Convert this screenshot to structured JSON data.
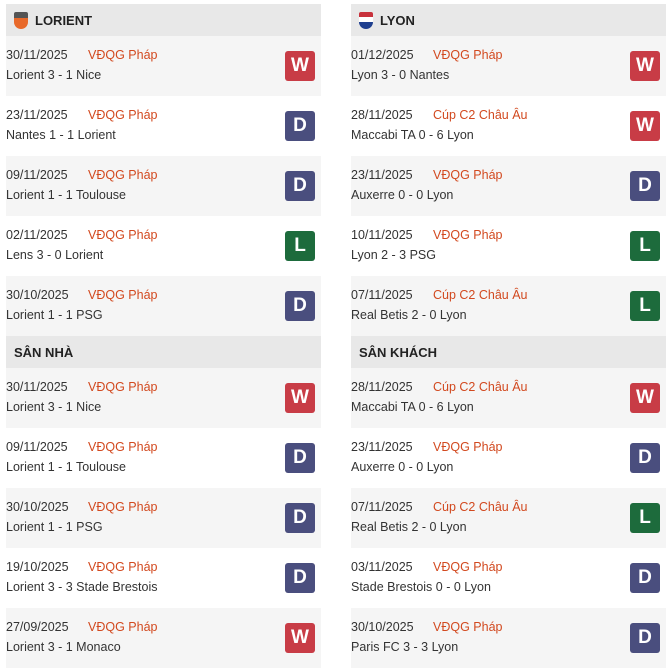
{
  "colors": {
    "W": "#c83c46",
    "D": "#4a4e7e",
    "L": "#1d6b3c",
    "competition": "#d2491f"
  },
  "sections": [
    {
      "title": "LORIENT",
      "icon": "lorient-crest-icon",
      "rows": [
        {
          "date": "30/11/2025",
          "comp": "VĐQG Pháp",
          "match": "Lorient 3 - 1 Nice",
          "result": "W"
        },
        {
          "date": "23/11/2025",
          "comp": "VĐQG Pháp",
          "match": "Nantes 1 - 1 Lorient",
          "result": "D"
        },
        {
          "date": "09/11/2025",
          "comp": "VĐQG Pháp",
          "match": "Lorient 1 - 1 Toulouse",
          "result": "D"
        },
        {
          "date": "02/11/2025",
          "comp": "VĐQG Pháp",
          "match": "Lens 3 - 0 Lorient",
          "result": "L"
        },
        {
          "date": "30/10/2025",
          "comp": "VĐQG Pháp",
          "match": "Lorient 1 - 1 PSG",
          "result": "D"
        }
      ]
    },
    {
      "title": "LYON",
      "icon": "lyon-crest-icon",
      "rows": [
        {
          "date": "01/12/2025",
          "comp": "VĐQG Pháp",
          "match": "Lyon 3 - 0 Nantes",
          "result": "W"
        },
        {
          "date": "28/11/2025",
          "comp": "Cúp C2 Châu Âu",
          "match": "Maccabi TA 0 - 6 Lyon",
          "result": "W"
        },
        {
          "date": "23/11/2025",
          "comp": "VĐQG Pháp",
          "match": "Auxerre 0 - 0 Lyon",
          "result": "D"
        },
        {
          "date": "10/11/2025",
          "comp": "VĐQG Pháp",
          "match": "Lyon 2 - 3 PSG",
          "result": "L"
        },
        {
          "date": "07/11/2025",
          "comp": "Cúp C2 Châu Âu",
          "match": "Real Betis 2 - 0 Lyon",
          "result": "L"
        }
      ]
    },
    {
      "title": "SÂN NHÀ",
      "rows": [
        {
          "date": "30/11/2025",
          "comp": "VĐQG Pháp",
          "match": "Lorient 3 - 1 Nice",
          "result": "W"
        },
        {
          "date": "09/11/2025",
          "comp": "VĐQG Pháp",
          "match": "Lorient 1 - 1 Toulouse",
          "result": "D"
        },
        {
          "date": "30/10/2025",
          "comp": "VĐQG Pháp",
          "match": "Lorient 1 - 1 PSG",
          "result": "D"
        },
        {
          "date": "19/10/2025",
          "comp": "VĐQG Pháp",
          "match": "Lorient 3 - 3 Stade Brestois",
          "result": "D"
        },
        {
          "date": "27/09/2025",
          "comp": "VĐQG Pháp",
          "match": "Lorient 3 - 1 Monaco",
          "result": "W"
        }
      ]
    },
    {
      "title": "SÂN KHÁCH",
      "rows": [
        {
          "date": "28/11/2025",
          "comp": "Cúp C2 Châu Âu",
          "match": "Maccabi TA 0 - 6 Lyon",
          "result": "W"
        },
        {
          "date": "23/11/2025",
          "comp": "VĐQG Pháp",
          "match": "Auxerre 0 - 0 Lyon",
          "result": "D"
        },
        {
          "date": "07/11/2025",
          "comp": "Cúp C2 Châu Âu",
          "match": "Real Betis 2 - 0 Lyon",
          "result": "L"
        },
        {
          "date": "03/11/2025",
          "comp": "VĐQG Pháp",
          "match": "Stade Brestois 0 - 0 Lyon",
          "result": "D"
        },
        {
          "date": "30/10/2025",
          "comp": "VĐQG Pháp",
          "match": "Paris FC 3 - 3 Lyon",
          "result": "D"
        }
      ]
    }
  ]
}
